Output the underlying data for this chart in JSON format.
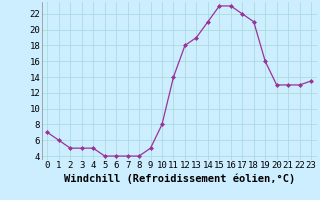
{
  "x": [
    0,
    1,
    2,
    3,
    4,
    5,
    6,
    7,
    8,
    9,
    10,
    11,
    12,
    13,
    14,
    15,
    16,
    17,
    18,
    19,
    20,
    21,
    22,
    23
  ],
  "y": [
    7,
    6,
    5,
    5,
    5,
    4,
    4,
    4,
    4,
    5,
    8,
    14,
    18,
    19,
    21,
    23,
    23,
    22,
    21,
    16,
    13,
    13,
    13,
    13.5
  ],
  "line_color": "#993399",
  "marker_color": "#993399",
  "bg_color": "#cceeff",
  "grid_color": "#aadddd",
  "xlabel": "Windchill (Refroidissement éolien,°C)",
  "tick_fontsize": 6.5,
  "xlabel_fontsize": 7.5,
  "ylim": [
    3.5,
    23.5
  ],
  "yticks": [
    4,
    6,
    8,
    10,
    12,
    14,
    16,
    18,
    20,
    22
  ],
  "xticks": [
    0,
    1,
    2,
    3,
    4,
    5,
    6,
    7,
    8,
    9,
    10,
    11,
    12,
    13,
    14,
    15,
    16,
    17,
    18,
    19,
    20,
    21,
    22,
    23
  ]
}
